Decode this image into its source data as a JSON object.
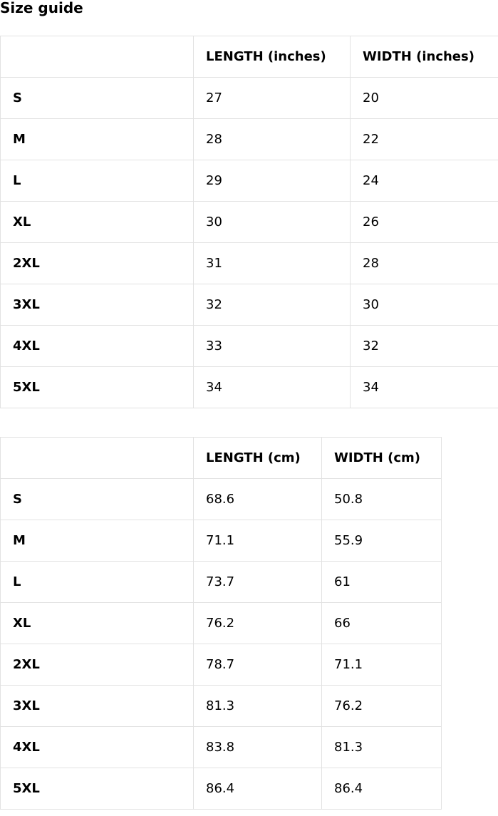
{
  "title": "Size guide",
  "tables": [
    {
      "headers": [
        "",
        "LENGTH (inches)",
        "WIDTH (inches)"
      ],
      "rows": [
        [
          "S",
          "27",
          "20"
        ],
        [
          "M",
          "28",
          "22"
        ],
        [
          "L",
          "29",
          "24"
        ],
        [
          "XL",
          "30",
          "26"
        ],
        [
          "2XL",
          "31",
          "28"
        ],
        [
          "3XL",
          "32",
          "30"
        ],
        [
          "4XL",
          "33",
          "32"
        ],
        [
          "5XL",
          "34",
          "34"
        ]
      ]
    },
    {
      "headers": [
        "",
        "LENGTH (cm)",
        "WIDTH (cm)"
      ],
      "rows": [
        [
          "S",
          "68.6",
          "50.8"
        ],
        [
          "M",
          "71.1",
          "55.9"
        ],
        [
          "L",
          "73.7",
          "61"
        ],
        [
          "XL",
          "76.2",
          "66"
        ],
        [
          "2XL",
          "78.7",
          "71.1"
        ],
        [
          "3XL",
          "81.3",
          "76.2"
        ],
        [
          "4XL",
          "83.8",
          "81.3"
        ],
        [
          "5XL",
          "86.4",
          "86.4"
        ]
      ]
    }
  ]
}
